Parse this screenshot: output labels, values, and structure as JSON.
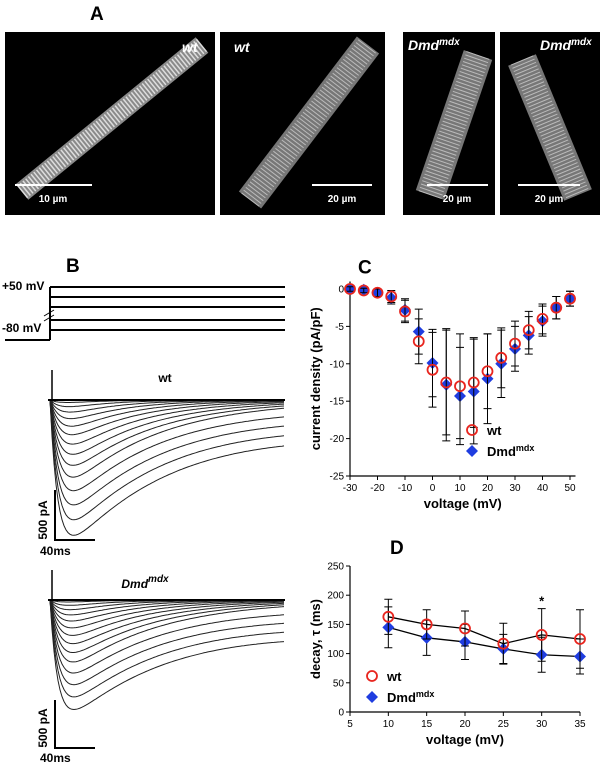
{
  "panel_a": {
    "label": "A",
    "images": [
      {
        "caption": "wt",
        "scale": "10 µm"
      },
      {
        "caption": "wt",
        "scale": "20 µm"
      },
      {
        "caption": "Dmd",
        "caption_superscript": "mdx",
        "scale": "20 µm"
      },
      {
        "caption": "Dmd",
        "caption_superscript": "mdx",
        "scale": "20 µm"
      }
    ]
  },
  "panel_b": {
    "label": "B",
    "protocol_high": "+50 mV",
    "protocol_low": "-80 mV",
    "traces": [
      {
        "title": "wt",
        "scale_current": "500 pA",
        "scale_time": "40ms"
      },
      {
        "title": "Dmd",
        "title_superscript": "mdx",
        "scale_current": "500 pA",
        "scale_time": "40ms"
      }
    ]
  },
  "chart_data": [
    {
      "type": "scatter",
      "label": "C",
      "x_label": "voltage (mV)",
      "y_label": "current density (pA/pF)",
      "x": [
        -30,
        -25,
        -20,
        -15,
        -10,
        -5,
        0,
        5,
        10,
        15,
        20,
        25,
        30,
        35,
        40,
        45,
        50
      ],
      "series": [
        {
          "name": "wt",
          "color": "#e8251e",
          "marker": "circle-open",
          "values": [
            0,
            -0.2,
            -0.5,
            -1,
            -3,
            -7,
            -10.8,
            -12.5,
            -13,
            -12.5,
            -11,
            -9.2,
            -7.3,
            -5.5,
            -4,
            -2.5,
            -1.3
          ],
          "errors": [
            0.3,
            0.3,
            0.5,
            0.8,
            1.5,
            3,
            5,
            7,
            7,
            6,
            5,
            4,
            3,
            2.5,
            2,
            1.5,
            1
          ]
        },
        {
          "name": "Dmd",
          "name_superscript": "mdx",
          "color": "#1f3de0",
          "marker": "diamond",
          "values": [
            0,
            -0.1,
            -0.5,
            -1.2,
            -2.8,
            -5.7,
            -9.9,
            -12.8,
            -14.3,
            -13.7,
            -12,
            -10,
            -8,
            -6.2,
            -4.3,
            -2.5,
            -1.3
          ],
          "errors": [
            0.3,
            0.3,
            0.5,
            0.8,
            1.5,
            3,
            4.5,
            7.5,
            6.5,
            7,
            6,
            4.5,
            3,
            2.5,
            2,
            1.5,
            1
          ]
        }
      ],
      "xlim": [
        -30,
        52
      ],
      "ylim": [
        -25,
        1
      ],
      "xticks": [
        -30,
        -20,
        -10,
        0,
        10,
        20,
        30,
        40,
        50
      ],
      "yticks": [
        -25,
        -20,
        -15,
        -10,
        -5,
        0
      ],
      "legend": "right"
    },
    {
      "type": "line",
      "label": "D",
      "x_label": "voltage (mV)",
      "y_label": "decay, τ (ms)",
      "x": [
        10,
        15,
        20,
        25,
        30,
        35
      ],
      "series": [
        {
          "name": "wt",
          "color": "#e8251e",
          "marker": "circle-open",
          "values": [
            163,
            150,
            143,
            117,
            132,
            125
          ],
          "errors": [
            30,
            25,
            30,
            35,
            45,
            50
          ]
        },
        {
          "name": "Dmd",
          "name_superscript": "mdx",
          "color": "#1f3de0",
          "marker": "diamond",
          "values": [
            145,
            127,
            120,
            108,
            98,
            95
          ],
          "errors": [
            35,
            30,
            30,
            25,
            30,
            30
          ]
        }
      ],
      "annotations": [
        {
          "text": "*",
          "x": 30
        }
      ],
      "xlim": [
        5,
        35
      ],
      "ylim": [
        0,
        250
      ],
      "xticks": [
        5,
        10,
        15,
        20,
        25,
        30,
        35
      ],
      "yticks": [
        0,
        50,
        100,
        150,
        200,
        250
      ],
      "legend": "lower left"
    }
  ]
}
